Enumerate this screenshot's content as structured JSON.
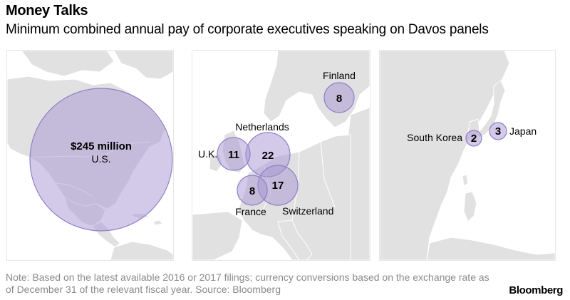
{
  "header": {
    "title": "Money Talks",
    "subtitle": "Minimum combined annual pay of corporate executives speaking on Davos panels"
  },
  "colors": {
    "bubble_fill": "#b6aade",
    "bubble_stroke": "#8f7fc8",
    "land": "#e1e1e1",
    "note_text": "#8a8a8a"
  },
  "panels": {
    "americas": {
      "bubbles": [
        {
          "country": "U.S.",
          "value_label": "$245 million",
          "value_musd": 245
        }
      ]
    },
    "europe": {
      "bubbles": [
        {
          "country": "Finland",
          "value_label": "8",
          "value_musd": 8
        },
        {
          "country": "Netherlands",
          "value_label": "22",
          "value_musd": 22
        },
        {
          "country": "U.K.",
          "value_label": "11",
          "value_musd": 11
        },
        {
          "country": "Switzerland",
          "value_label": "17",
          "value_musd": 17
        },
        {
          "country": "France",
          "value_label": "8",
          "value_musd": 8
        }
      ]
    },
    "asia": {
      "bubbles": [
        {
          "country": "South Korea",
          "value_label": "2",
          "value_musd": 2
        },
        {
          "country": "Japan",
          "value_label": "3",
          "value_musd": 3
        }
      ]
    }
  },
  "footer": {
    "note": "Note: Based on the latest available 2016 or 2017 filings; currency conversions based on the exchange rate as of December 31 of the relevant fiscal year. Source: Bloomberg",
    "brand": "Bloomberg"
  }
}
